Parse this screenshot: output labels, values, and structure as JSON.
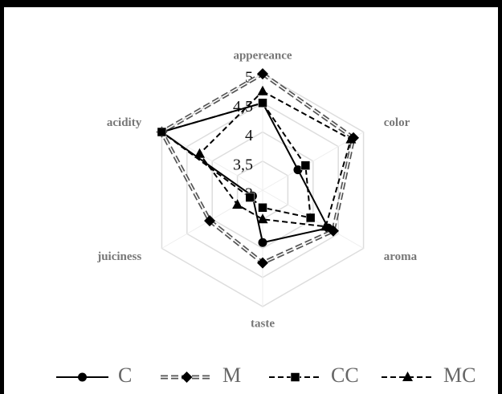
{
  "chart_data": {
    "type": "radar",
    "categories": [
      "appereance",
      "color",
      "aroma",
      "taste",
      "juiciness",
      "acidity"
    ],
    "ylim": [
      3,
      5
    ],
    "yticks": [
      3,
      {
        "value": 3.5,
        "label": "3,5"
      },
      4,
      {
        "value": 4.5,
        "label": "4,5"
      },
      5
    ],
    "grid": true,
    "legend": "bottom",
    "series": [
      {
        "name": "C",
        "color": "#000000",
        "marker": "circle",
        "dash": "solid",
        "values": [
          4.5,
          3.7,
          4.3,
          3.9,
          3.2,
          5
        ]
      },
      {
        "name": "M",
        "color": "#555555",
        "marker": "diamond",
        "dash": "double",
        "values": [
          5,
          4.8,
          4.4,
          4.25,
          4.05,
          5
        ]
      },
      {
        "name": "CC",
        "color": "#000000",
        "marker": "square",
        "dash": "dashed",
        "values": [
          4.5,
          3.85,
          3.95,
          3.3,
          3.25,
          5
        ]
      },
      {
        "name": "MC",
        "color": "#000000",
        "marker": "triangle",
        "dash": "dashed",
        "values": [
          4.7,
          4.75,
          4.25,
          3.5,
          3.5,
          4.25
        ]
      }
    ]
  }
}
